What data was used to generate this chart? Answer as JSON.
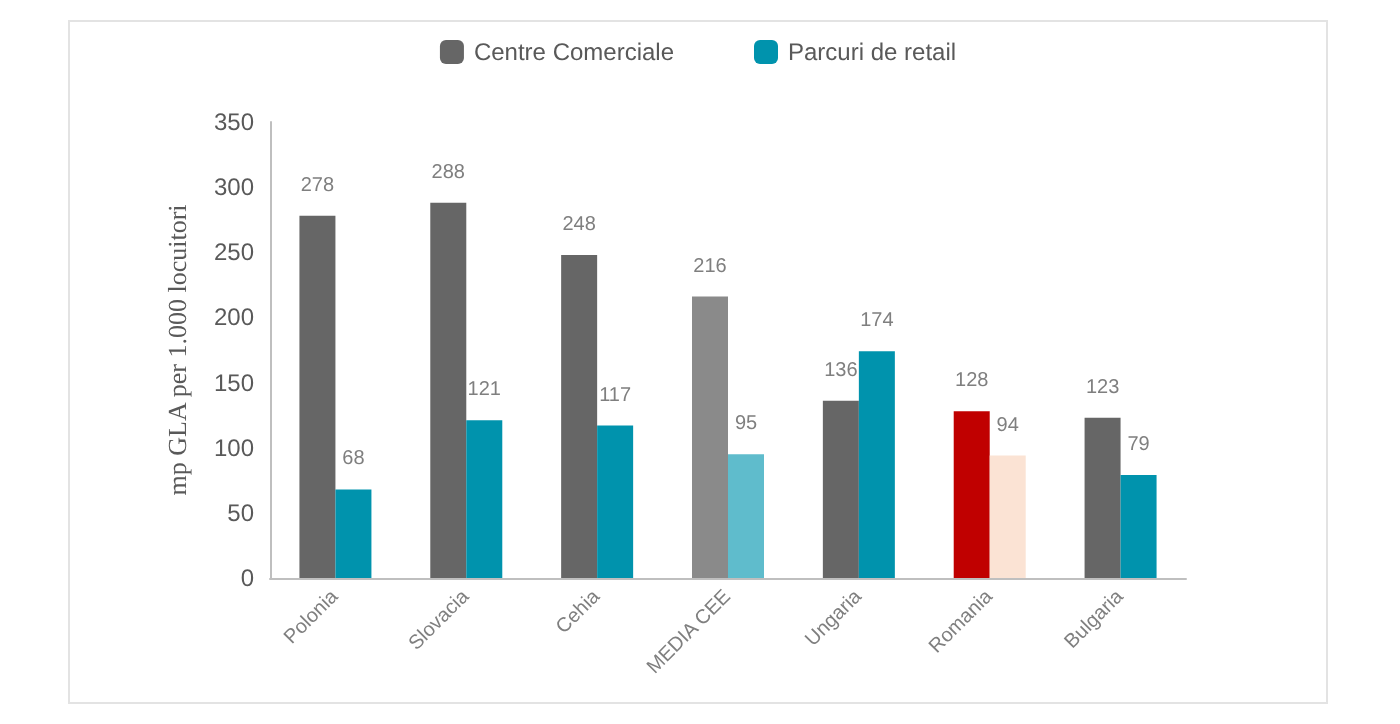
{
  "chart_data": {
    "type": "bar",
    "ylabel": "mp GLA per 1.000 locuitori",
    "categories": [
      "Polonia",
      "Slovacia",
      "Cehia",
      "MEDIA CEE",
      "Ungaria",
      "Romania",
      "Bulgaria"
    ],
    "series": [
      {
        "name": "Centre Comerciale",
        "color": "#666666",
        "colors": [
          "#666666",
          "#666666",
          "#666666",
          "#8a8a8a",
          "#666666",
          "#c00000",
          "#666666"
        ],
        "values": [
          278,
          288,
          248,
          216,
          136,
          128,
          123
        ]
      },
      {
        "name": "Parcuri de retail",
        "color": "#0093ad",
        "colors": [
          "#0093ad",
          "#0093ad",
          "#0093ad",
          "#5fbccc",
          "#0093ad",
          "#fbe3d4",
          "#0093ad"
        ],
        "values": [
          68,
          121,
          117,
          95,
          174,
          94,
          79
        ]
      }
    ],
    "ylim": [
      0,
      350
    ],
    "yticks": [
      0,
      50,
      100,
      150,
      200,
      250,
      300,
      350
    ],
    "data_labels": true,
    "grid": false,
    "legend": "top"
  }
}
